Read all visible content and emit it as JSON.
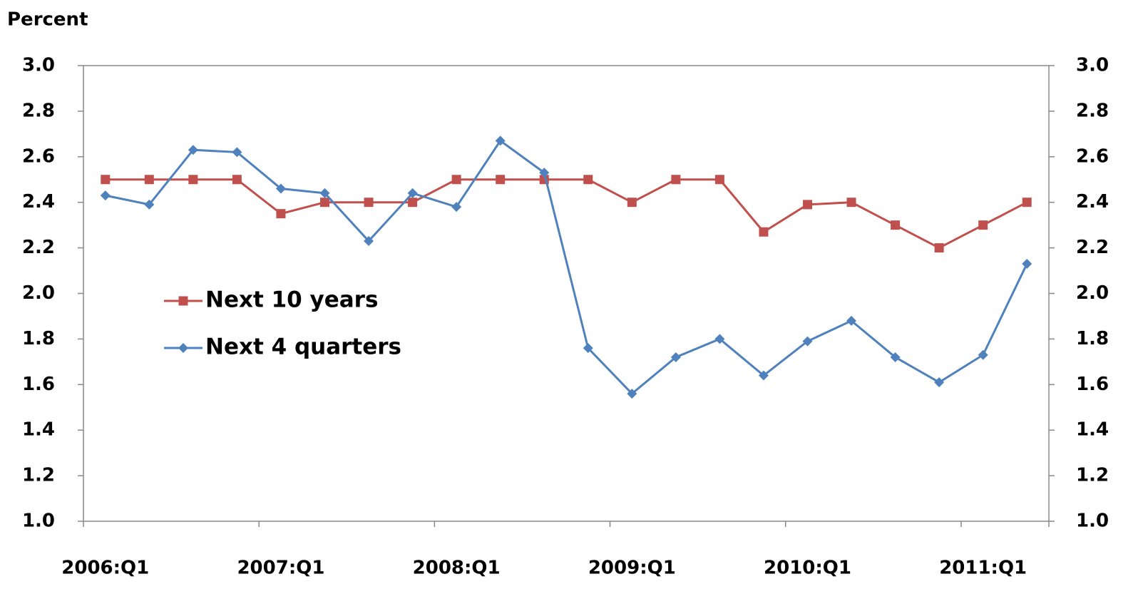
{
  "chart_data": {
    "type": "line",
    "y_label": "Percent",
    "categories": [
      "2006:Q1",
      null,
      null,
      null,
      "2007:Q1",
      null,
      null,
      null,
      "2008:Q1",
      null,
      null,
      null,
      "2009:Q1",
      null,
      null,
      null,
      "2010:Q1",
      null,
      null,
      null,
      "2011:Q1",
      null
    ],
    "series": [
      {
        "name": "Next 10 years",
        "color": "#c0504d",
        "marker": "square",
        "values": [
          2.5,
          2.5,
          2.5,
          2.5,
          2.35,
          2.4,
          2.4,
          2.4,
          2.5,
          2.5,
          2.5,
          2.5,
          2.4,
          2.5,
          2.5,
          2.27,
          2.39,
          2.4,
          2.3,
          2.2,
          2.3,
          2.4
        ]
      },
      {
        "name": "Next 4 quarters",
        "color": "#4f81bd",
        "marker": "diamond",
        "values": [
          2.43,
          2.39,
          2.63,
          2.62,
          2.46,
          2.44,
          2.23,
          2.44,
          2.38,
          2.67,
          2.53,
          1.76,
          1.56,
          1.72,
          1.8,
          1.64,
          1.79,
          1.88,
          1.72,
          1.61,
          1.73,
          2.13
        ]
      }
    ],
    "ylim": [
      1,
      3
    ],
    "yticks": [
      {
        "value": 1,
        "label": "1.0"
      },
      {
        "value": 1.2,
        "label": "1.2"
      },
      {
        "value": 1.4,
        "label": "1.4"
      },
      {
        "value": 1.6,
        "label": "1.6"
      },
      {
        "value": 1.8,
        "label": "1.8"
      },
      {
        "value": 2,
        "label": "2.0"
      },
      {
        "value": 2.2,
        "label": "2.2"
      },
      {
        "value": 2.4,
        "label": "2.4"
      },
      {
        "value": 2.6,
        "label": "2.6"
      },
      {
        "value": 2.8,
        "label": "2.8"
      },
      {
        "value": 3,
        "label": "3.0"
      }
    ],
    "y2lim": [
      1,
      3
    ],
    "y2ticks": [
      {
        "value": 1,
        "label": "1.0"
      },
      {
        "value": 1.2,
        "label": "1.2"
      },
      {
        "value": 1.4,
        "label": "1.4"
      },
      {
        "value": 1.6,
        "label": "1.6"
      },
      {
        "value": 1.8,
        "label": "1.8"
      },
      {
        "value": 2,
        "label": "2.0"
      },
      {
        "value": 2.2,
        "label": "2.2"
      },
      {
        "value": 2.4,
        "label": "2.4"
      },
      {
        "value": 2.6,
        "label": "2.6"
      },
      {
        "value": 2.8,
        "label": "2.8"
      },
      {
        "value": 3,
        "label": "3.0"
      }
    ],
    "grid": false,
    "legend": "left"
  }
}
